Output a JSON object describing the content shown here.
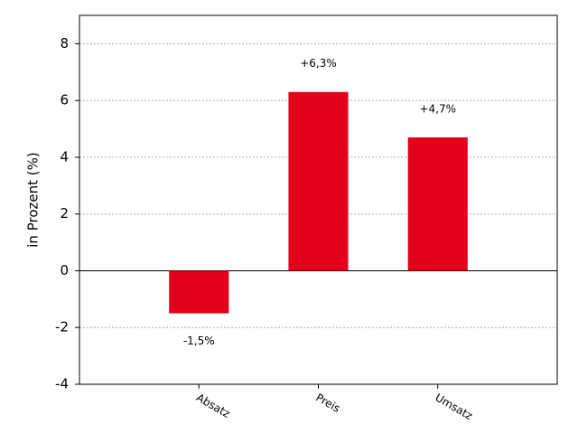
{
  "chart_data": {
    "type": "bar",
    "ylabel": "in Prozent (%)",
    "categories": [
      "Absatz",
      "Preis",
      "Umsatz"
    ],
    "values": [
      -1.5,
      6.3,
      4.7
    ],
    "value_labels": [
      "-1,5%",
      "+6,3%",
      "+4,7%"
    ],
    "color": "#e2001a",
    "ylim": [
      -4,
      9
    ],
    "yticks": [
      -4,
      -2,
      0,
      2,
      4,
      6,
      8
    ],
    "grid": true
  }
}
